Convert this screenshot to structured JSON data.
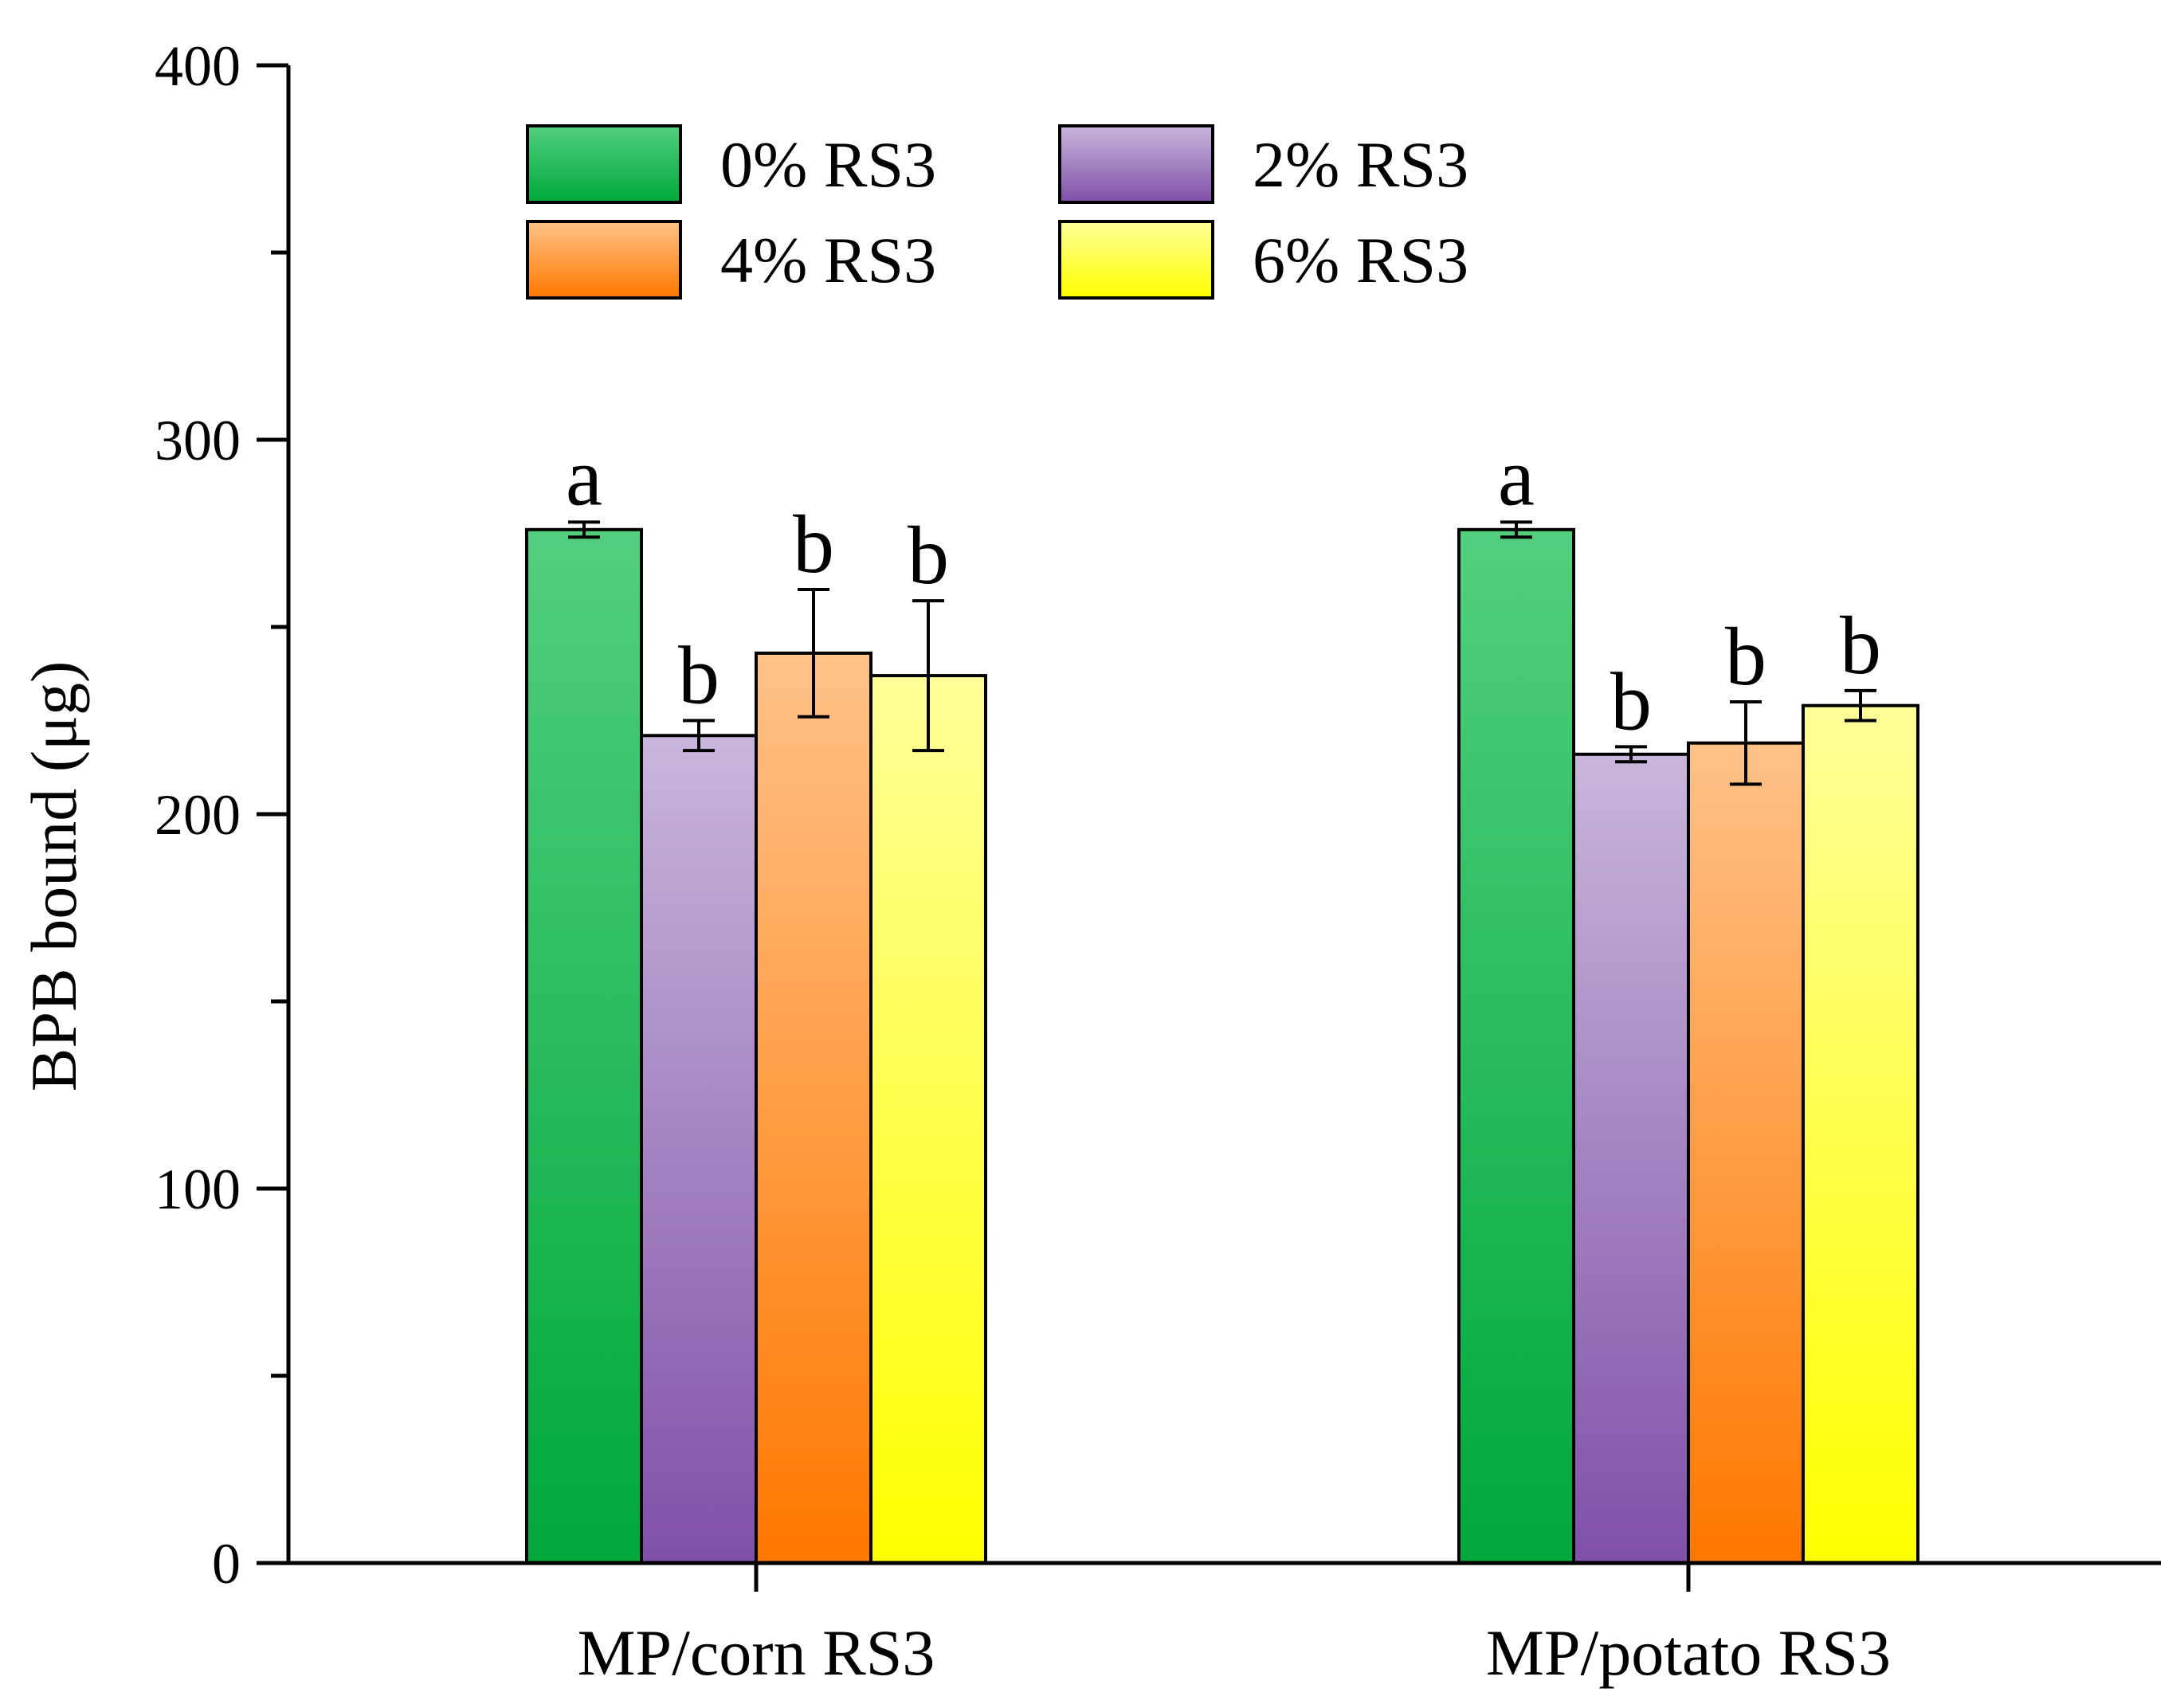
{
  "chart_data": {
    "type": "bar",
    "title": "",
    "xlabel": "",
    "ylabel": "BPB bound (μg)",
    "ylim": [
      0,
      400
    ],
    "yticks": [
      0,
      100,
      200,
      300,
      400
    ],
    "yticks_minor": [
      50,
      150,
      250,
      350
    ],
    "categories": [
      "MP/corn RS3",
      "MP/potato RS3"
    ],
    "legend_position": "top-left",
    "series": [
      {
        "name": "0% RS3",
        "values": [
          276,
          276
        ],
        "errors": [
          2,
          2
        ],
        "labels": [
          "a",
          "a"
        ],
        "color_top": "#52cf7e",
        "color_bottom": "#00a83c"
      },
      {
        "name": "2% RS3",
        "values": [
          221,
          216
        ],
        "errors": [
          4,
          2
        ],
        "labels": [
          "b",
          "b"
        ],
        "color_top": "#c9b6dc",
        "color_bottom": "#8050a8"
      },
      {
        "name": "4% RS3",
        "values": [
          243,
          219
        ],
        "errors": [
          17,
          11
        ],
        "labels": [
          "b",
          "b"
        ],
        "color_top": "#ffc288",
        "color_bottom": "#ff7800"
      },
      {
        "name": "6% RS3",
        "values": [
          237,
          229
        ],
        "errors": [
          20,
          4
        ],
        "labels": [
          "b",
          "b"
        ],
        "color_top": "#ffff99",
        "color_bottom": "#ffff00"
      }
    ]
  }
}
